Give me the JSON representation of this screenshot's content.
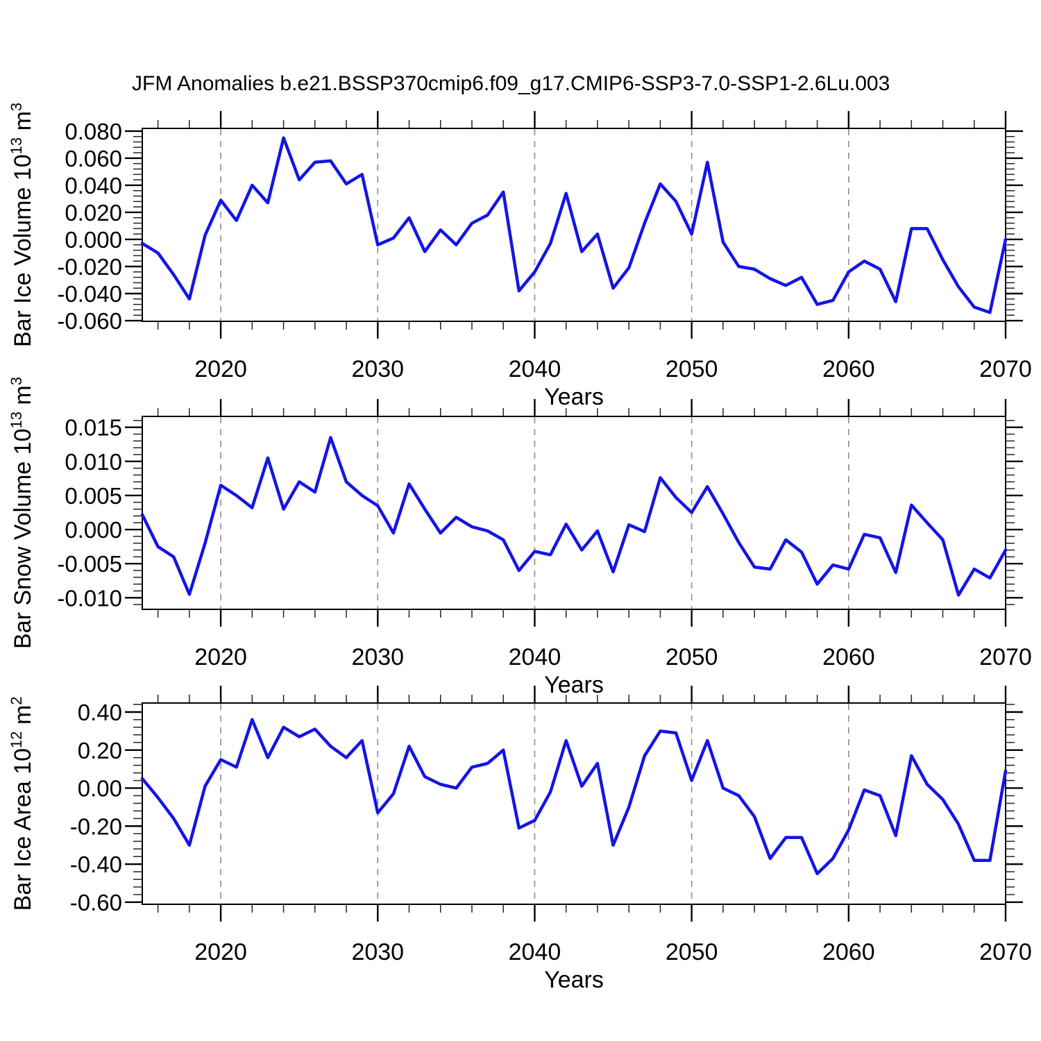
{
  "page": {
    "title": "JFM Anomalies b.e21.BSSP370cmip6.f09_g17.CMIP6-SSP3-7.0-SSP1-2.6Lu.003",
    "background": "#ffffff"
  },
  "colors": {
    "line": "#1414e6",
    "axis": "#000000",
    "grid": "#8c8c8c",
    "minor_tick": "#222222",
    "text": "#000000"
  },
  "chart_data": [
    {
      "type": "line",
      "name": "bar-ice-volume",
      "title": "",
      "xlabel": "Years",
      "ylabel_text": "Bar Ice Volume 10^13 m^3",
      "ylabel_parts": [
        [
          "Bar Ice Volume 10",
          false
        ],
        [
          "13",
          true
        ],
        [
          " m",
          false
        ],
        [
          "3",
          true
        ]
      ],
      "x_start": 2015,
      "x_step": 1,
      "xlim": [
        2015,
        2070
      ],
      "ylim": [
        -0.0605,
        0.082
      ],
      "yticks": [
        0.08,
        0.06,
        0.04,
        0.02,
        0.0,
        -0.02,
        -0.04,
        -0.06
      ],
      "ytick_labels": [
        "0.080",
        "0.060",
        "0.040",
        "0.020",
        "0.000",
        "-0.020",
        "-0.040",
        "-0.060"
      ],
      "ytick_minor_step": 0.004,
      "xticks": [
        2020,
        2030,
        2040,
        2050,
        2060,
        2070
      ],
      "xtick_minor_step": 2,
      "grid_x": [
        2020,
        2030,
        2040,
        2050,
        2060
      ],
      "grid_on": true,
      "legend": "none",
      "values": [
        -0.003,
        -0.01,
        -0.026,
        -0.044,
        0.003,
        0.029,
        0.014,
        0.04,
        0.027,
        0.075,
        0.044,
        0.057,
        0.058,
        0.041,
        0.048,
        -0.004,
        0.001,
        0.016,
        -0.009,
        0.007,
        -0.004,
        0.012,
        0.018,
        0.035,
        -0.038,
        -0.024,
        -0.003,
        0.034,
        -0.009,
        0.004,
        -0.036,
        -0.021,
        0.012,
        0.041,
        0.028,
        0.004,
        0.057,
        -0.002,
        -0.02,
        -0.022,
        -0.029,
        -0.034,
        -0.028,
        -0.048,
        -0.045,
        -0.024,
        -0.016,
        -0.022,
        -0.046,
        0.008,
        0.008,
        -0.015,
        -0.035,
        -0.05,
        -0.054,
        0.0
      ]
    },
    {
      "type": "line",
      "name": "bar-snow-volume",
      "title": "",
      "xlabel": "Years",
      "ylabel_text": "Bar Snow Volume 10^13 m^3",
      "ylabel_parts": [
        [
          "Bar Snow Volume 10",
          false
        ],
        [
          "13",
          true
        ],
        [
          " m",
          false
        ],
        [
          "3",
          true
        ]
      ],
      "x_start": 2015,
      "x_step": 1,
      "xlim": [
        2015,
        2070
      ],
      "ylim": [
        -0.0117,
        0.0166
      ],
      "yticks": [
        0.015,
        0.01,
        0.005,
        0.0,
        -0.005,
        -0.01
      ],
      "ytick_labels": [
        "0.015",
        "0.010",
        "0.005",
        "0.000",
        "-0.005",
        "-0.010"
      ],
      "ytick_minor_step": 0.001,
      "xticks": [
        2020,
        2030,
        2040,
        2050,
        2060,
        2070
      ],
      "xtick_minor_step": 2,
      "grid_x": [
        2020,
        2030,
        2040,
        2050,
        2060
      ],
      "grid_on": true,
      "legend": "none",
      "values": [
        0.0022,
        -0.0025,
        -0.004,
        -0.0095,
        -0.002,
        0.0065,
        0.005,
        0.0032,
        0.0105,
        0.003,
        0.007,
        0.0055,
        0.0135,
        0.007,
        0.005,
        0.0035,
        -0.0005,
        0.0067,
        0.003,
        -0.0005,
        0.0018,
        0.0004,
        -0.0002,
        -0.0015,
        -0.006,
        -0.0032,
        -0.0037,
        0.0008,
        -0.003,
        -0.0002,
        -0.0062,
        0.0007,
        -0.0003,
        0.0076,
        0.0047,
        0.0025,
        0.0063,
        0.0023,
        -0.0019,
        -0.0055,
        -0.0058,
        -0.0015,
        -0.0033,
        -0.008,
        -0.0052,
        -0.0058,
        -0.0007,
        -0.0012,
        -0.0063,
        0.0036,
        0.001,
        -0.0015,
        -0.0096,
        -0.0058,
        -0.0071,
        -0.003
      ]
    },
    {
      "type": "line",
      "name": "bar-ice-area",
      "title": "",
      "xlabel": "Years",
      "ylabel_text": "Bar Ice Area 10^12 m^2",
      "ylabel_parts": [
        [
          "Bar Ice Area 10",
          false
        ],
        [
          "12",
          true
        ],
        [
          " m",
          false
        ],
        [
          "2",
          true
        ]
      ],
      "x_start": 2015,
      "x_step": 1,
      "xlim": [
        2015,
        2070
      ],
      "ylim": [
        -0.611,
        0.4474
      ],
      "yticks": [
        0.4,
        0.2,
        0.0,
        -0.2,
        -0.4,
        -0.6
      ],
      "ytick_labels": [
        "0.40",
        "0.20",
        "0.00",
        "-0.20",
        "-0.40",
        "-0.60"
      ],
      "ytick_minor_step": 0.04,
      "xticks": [
        2020,
        2030,
        2040,
        2050,
        2060,
        2070
      ],
      "xtick_minor_step": 2,
      "grid_x": [
        2020,
        2030,
        2040,
        2050,
        2060
      ],
      "grid_on": true,
      "legend": "none",
      "values": [
        0.05,
        -0.05,
        -0.16,
        -0.3,
        0.01,
        0.15,
        0.11,
        0.36,
        0.16,
        0.32,
        0.27,
        0.31,
        0.22,
        0.16,
        0.25,
        -0.13,
        -0.03,
        0.22,
        0.06,
        0.02,
        0.0,
        0.11,
        0.13,
        0.2,
        -0.21,
        -0.17,
        -0.02,
        0.25,
        0.01,
        0.13,
        -0.3,
        -0.1,
        0.17,
        0.3,
        0.29,
        0.04,
        0.25,
        0.0,
        -0.04,
        -0.15,
        -0.37,
        -0.26,
        -0.26,
        -0.45,
        -0.37,
        -0.22,
        -0.01,
        -0.04,
        -0.25,
        0.17,
        0.02,
        -0.06,
        -0.19,
        -0.38,
        -0.38,
        0.09
      ]
    }
  ]
}
